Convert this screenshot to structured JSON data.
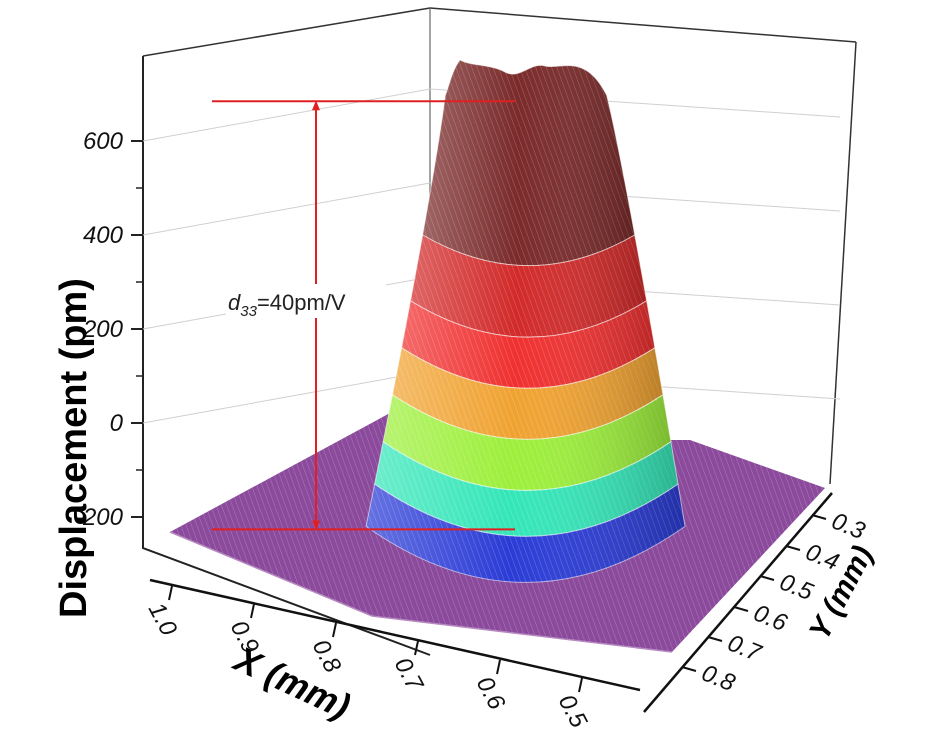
{
  "chart_data": {
    "type": "surface3d",
    "title": "",
    "zlabel": "Displacement (pm)",
    "xlabel": "X (mm)",
    "ylabel": "Y (mm)",
    "z_ticks": [
      -200,
      0,
      200,
      400,
      600
    ],
    "x_ticks": [
      "1.0",
      "0.9",
      "0.8",
      "0.7",
      "0.6",
      "0.5"
    ],
    "y_ticks": [
      "0.3",
      "0.4",
      "0.5",
      "0.6",
      "0.7",
      "0.8"
    ],
    "zlim": [
      -250,
      750
    ],
    "surface": {
      "base_level": -220,
      "peak_level": 710,
      "plateau_bumps": 3
    },
    "color_bands": [
      {
        "from": -220,
        "to": -130,
        "color": "#2b3cd6"
      },
      {
        "from": -130,
        "to": -40,
        "color": "#33e6b8"
      },
      {
        "from": -40,
        "to": 60,
        "color": "#9cef3a"
      },
      {
        "from": 60,
        "to": 160,
        "color": "#f0a230"
      },
      {
        "from": 160,
        "to": 260,
        "color": "#f03030"
      },
      {
        "from": 260,
        "to": 400,
        "color": "#d22a2a"
      },
      {
        "from": 400,
        "to": 750,
        "color": "#7a2a2a"
      }
    ],
    "base_color": "#8b4a9c",
    "annotation": {
      "symbol": "d",
      "subscript": "33",
      "text": "=40pm/V",
      "color": "#e02020"
    }
  }
}
